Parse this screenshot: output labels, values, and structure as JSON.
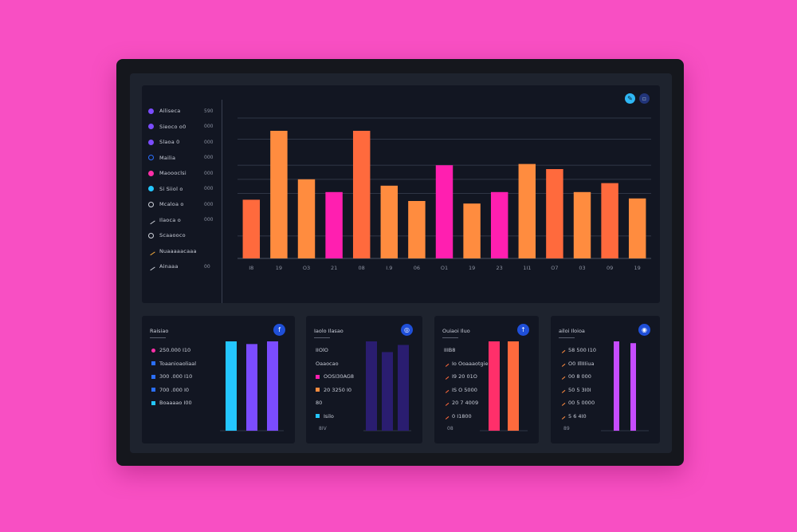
{
  "dashboard": {
    "toolbar": {
      "edit_icon": "pencil-icon",
      "settings_icon": "menu-icon"
    },
    "legend": [
      {
        "label": "Ailiseca",
        "value": "590",
        "color": "#7b4cff",
        "icon": "dot"
      },
      {
        "label": "Sieoco o0",
        "value": "000",
        "color": "#7b4cff",
        "icon": "dot"
      },
      {
        "label": "Slaoa 0",
        "value": "000",
        "color": "#7b4cff",
        "icon": "dot"
      },
      {
        "label": "Mailia",
        "value": "000",
        "color": "#2b6fff",
        "icon": "ring"
      },
      {
        "label": "Maoooclsi",
        "value": "000",
        "color": "#ff2fa8",
        "icon": "dot"
      },
      {
        "label": "Si Siiol o",
        "value": "000",
        "color": "#24c6ff",
        "icon": "dot"
      },
      {
        "label": "Mcaloa o",
        "value": "000",
        "color": "#d0d4dc",
        "icon": "ring"
      },
      {
        "label": "Ilaoca o",
        "value": "000",
        "color": "#d0d4dc",
        "icon": "pen"
      },
      {
        "label": "Scaaooco",
        "value": "",
        "color": "#d0d4dc",
        "icon": "ring"
      },
      {
        "label": "Nuaaaaacaaa",
        "value": "",
        "color": "#ffb23f",
        "icon": "pen"
      },
      {
        "label": "Ainaaa",
        "value": "00",
        "color": "#d0d4dc",
        "icon": "search"
      }
    ]
  },
  "chart_data": {
    "type": "bar",
    "categories": [
      "I8",
      "19",
      "O3",
      "21",
      "08",
      "I.9",
      "06",
      "O1",
      "19",
      "23",
      "1I1",
      "O7",
      "03",
      "09",
      "19"
    ],
    "values": [
      46,
      100,
      62,
      52,
      100,
      57,
      45,
      73,
      43,
      52,
      74,
      70,
      52,
      59,
      47
    ],
    "colors": [
      "#ff6a3d",
      "#ff8c3f",
      "#ff8c3f",
      "#ff1fb0",
      "#ff6a3d",
      "#ff8c3f",
      "#ff8c3f",
      "#ff1fb0",
      "#ff8c3f",
      "#ff1fb0",
      "#ff8c3f",
      "#ff6a3d",
      "#ff8c3f",
      "#ff6a3d",
      "#ff8c3f"
    ],
    "ylim": [
      0,
      110
    ]
  },
  "cards": [
    {
      "title": "Raisiao",
      "badge": "f",
      "foot": "",
      "rows": [
        {
          "text": "250.000 I10",
          "color": "#ff2fa8",
          "icon": "dot"
        },
        {
          "text": "Toaanioaoliaal",
          "color": "#2b6fff",
          "icon": "sq"
        },
        {
          "text": "300 .000 I10",
          "color": "#2b6fff",
          "icon": "sq"
        },
        {
          "text": "700 .000 I0",
          "color": "#2b6fff",
          "icon": "sq"
        },
        {
          "text": "Boaaaao I00",
          "color": "#24c6ff",
          "icon": "sq"
        }
      ],
      "chart_data": {
        "type": "bar",
        "values": [
          100,
          97,
          100
        ],
        "colors": [
          "#24c6ff",
          "#7b4cff",
          "#7b4cff"
        ],
        "ylim": [
          0,
          100
        ]
      }
    },
    {
      "title": "Iaolo Ilasao",
      "badge": "◎",
      "foot": "8IV",
      "rows": [
        {
          "text": "IIOlO",
          "color": "",
          "icon": "none"
        },
        {
          "text": "Oaaocao",
          "color": "",
          "icon": "none"
        },
        {
          "text": "OOSI30AG8",
          "color": "#ff1fb0",
          "icon": "sq"
        },
        {
          "text": "20 3250 I0",
          "color": "#ff8c3f",
          "icon": "sq"
        },
        {
          "text": "80",
          "color": "",
          "icon": "none"
        },
        {
          "text": "Isilo",
          "color": "#24c6ff",
          "icon": "sq"
        }
      ],
      "chart_data": {
        "type": "bar",
        "values": [
          100,
          88,
          96
        ],
        "colors": [
          "#2a1d70",
          "#2a1d70",
          "#2a1d70"
        ],
        "ylim": [
          0,
          100
        ]
      }
    },
    {
      "title": "Ouiaoi Iluo",
      "badge": "↑",
      "foot": "08",
      "rows": [
        {
          "text": "IIIB8",
          "color": "",
          "icon": "none"
        },
        {
          "text": "Io Ooaaaotgie",
          "color": "#ff6a3d",
          "icon": "pen"
        },
        {
          "text": "I9 20 01O",
          "color": "#ff6a3d",
          "icon": "pen"
        },
        {
          "text": "IS O 5000",
          "color": "#ff6a3d",
          "icon": "pen"
        },
        {
          "text": "20 7 4009",
          "color": "#ff6a3d",
          "icon": "pen"
        },
        {
          "text": "0 I1800",
          "color": "#ff6a3d",
          "icon": "pen"
        }
      ],
      "chart_data": {
        "type": "bar",
        "values": [
          100,
          100
        ],
        "colors": [
          "#ff2f6a",
          "#ff6a3d"
        ],
        "ylim": [
          0,
          100
        ]
      }
    },
    {
      "title": "ailoi Iloioa",
      "badge": "◉",
      "foot": "89",
      "rows": [
        {
          "text": "58 500 I10",
          "color": "#ff8c3f",
          "icon": "pen"
        },
        {
          "text": "O0 IllIIIiua",
          "color": "#ff8c3f",
          "icon": "pen"
        },
        {
          "text": "00 8 000",
          "color": "#ff8c3f",
          "icon": "pen"
        },
        {
          "text": "50 5 3I0I",
          "color": "#ff8c3f",
          "icon": "pen"
        },
        {
          "text": "00 5 0000",
          "color": "#ff8c3f",
          "icon": "pen"
        },
        {
          "text": "5 6 4I0",
          "color": "#ff8c3f",
          "icon": "pen"
        }
      ],
      "chart_data": {
        "type": "bar",
        "values": [
          100,
          98
        ],
        "colors": [
          "#c64cff",
          "#c64cff"
        ],
        "ylim": [
          0,
          100
        ]
      }
    }
  ]
}
